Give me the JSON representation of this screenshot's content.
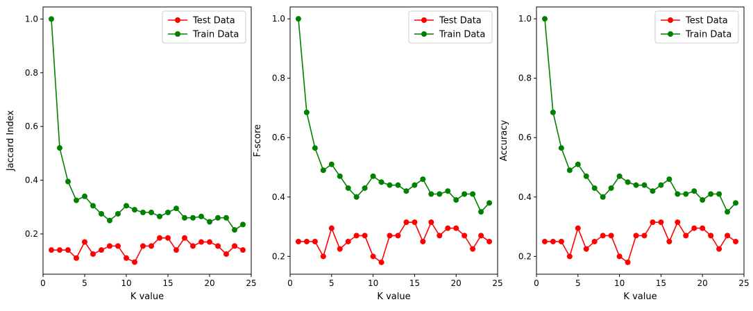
{
  "chart_data": [
    {
      "type": "line",
      "xlabel": "K value",
      "ylabel": "Jaccard Index",
      "xlim": [
        0,
        25
      ],
      "ylim": [
        0.05,
        1.045
      ],
      "xticks": [
        0,
        5,
        10,
        15,
        20,
        25
      ],
      "yticks": [
        0.2,
        0.4,
        0.6,
        0.8,
        1.0
      ],
      "x": [
        1,
        2,
        3,
        4,
        5,
        6,
        7,
        8,
        9,
        10,
        11,
        12,
        13,
        14,
        15,
        16,
        17,
        18,
        19,
        20,
        21,
        22,
        23,
        24
      ],
      "legend_position": "top-right",
      "series": [
        {
          "name": "Test Data",
          "color": "#ff0000",
          "values": [
            0.14,
            0.14,
            0.14,
            0.11,
            0.17,
            0.125,
            0.14,
            0.155,
            0.155,
            0.11,
            0.095,
            0.155,
            0.155,
            0.185,
            0.185,
            0.14,
            0.185,
            0.155,
            0.17,
            0.17,
            0.155,
            0.125,
            0.155,
            0.14
          ]
        },
        {
          "name": "Train Data",
          "color": "#008000",
          "values": [
            1.0,
            0.52,
            0.395,
            0.325,
            0.34,
            0.305,
            0.275,
            0.25,
            0.275,
            0.305,
            0.29,
            0.28,
            0.28,
            0.265,
            0.28,
            0.295,
            0.26,
            0.26,
            0.265,
            0.245,
            0.26,
            0.26,
            0.215,
            0.235
          ]
        }
      ]
    },
    {
      "type": "line",
      "xlabel": "K value",
      "ylabel": "F-score",
      "xlim": [
        0,
        25
      ],
      "ylim": [
        0.14,
        1.04
      ],
      "xticks": [
        0,
        5,
        10,
        15,
        20,
        25
      ],
      "yticks": [
        0.2,
        0.4,
        0.6,
        0.8,
        1.0
      ],
      "x": [
        1,
        2,
        3,
        4,
        5,
        6,
        7,
        8,
        9,
        10,
        11,
        12,
        13,
        14,
        15,
        16,
        17,
        18,
        19,
        20,
        21,
        22,
        23,
        24
      ],
      "legend_position": "top-right",
      "series": [
        {
          "name": "Test Data",
          "color": "#ff0000",
          "values": [
            0.25,
            0.25,
            0.25,
            0.2,
            0.295,
            0.225,
            0.25,
            0.27,
            0.27,
            0.2,
            0.18,
            0.27,
            0.27,
            0.315,
            0.315,
            0.25,
            0.315,
            0.27,
            0.295,
            0.295,
            0.27,
            0.225,
            0.27,
            0.25
          ]
        },
        {
          "name": "Train Data",
          "color": "#008000",
          "values": [
            1.0,
            0.685,
            0.565,
            0.49,
            0.51,
            0.47,
            0.43,
            0.4,
            0.43,
            0.47,
            0.45,
            0.44,
            0.44,
            0.42,
            0.44,
            0.46,
            0.41,
            0.41,
            0.42,
            0.39,
            0.41,
            0.41,
            0.35,
            0.38
          ]
        }
      ]
    },
    {
      "type": "line",
      "xlabel": "K value",
      "ylabel": "Accuracy",
      "xlim": [
        0,
        25
      ],
      "ylim": [
        0.14,
        1.04
      ],
      "xticks": [
        0,
        5,
        10,
        15,
        20,
        25
      ],
      "yticks": [
        0.2,
        0.4,
        0.6,
        0.8,
        1.0
      ],
      "x": [
        1,
        2,
        3,
        4,
        5,
        6,
        7,
        8,
        9,
        10,
        11,
        12,
        13,
        14,
        15,
        16,
        17,
        18,
        19,
        20,
        21,
        22,
        23,
        24
      ],
      "legend_position": "top-right",
      "series": [
        {
          "name": "Test Data",
          "color": "#ff0000",
          "values": [
            0.25,
            0.25,
            0.25,
            0.2,
            0.295,
            0.225,
            0.25,
            0.27,
            0.27,
            0.2,
            0.18,
            0.27,
            0.27,
            0.315,
            0.315,
            0.25,
            0.315,
            0.27,
            0.295,
            0.295,
            0.27,
            0.225,
            0.27,
            0.25
          ]
        },
        {
          "name": "Train Data",
          "color": "#008000",
          "values": [
            1.0,
            0.685,
            0.565,
            0.49,
            0.51,
            0.47,
            0.43,
            0.4,
            0.43,
            0.47,
            0.45,
            0.44,
            0.44,
            0.42,
            0.44,
            0.46,
            0.41,
            0.41,
            0.42,
            0.39,
            0.41,
            0.41,
            0.35,
            0.38
          ]
        }
      ]
    }
  ]
}
